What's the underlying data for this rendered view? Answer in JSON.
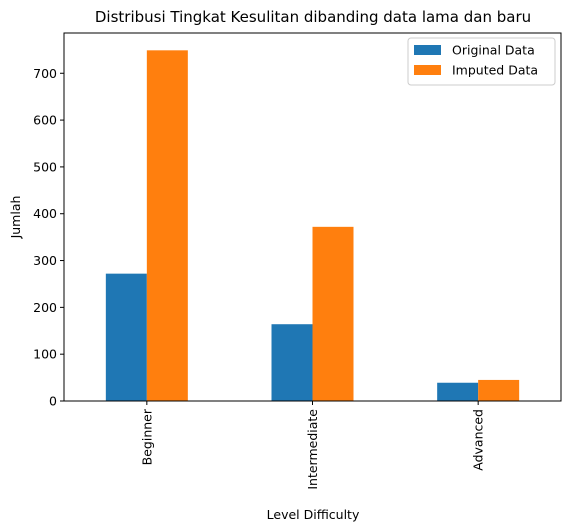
{
  "chart_data": {
    "type": "bar",
    "title": "Distribusi Tingkat Kesulitan dibanding data lama dan baru",
    "xlabel": "Level Difficulty",
    "ylabel": "Jumlah",
    "categories": [
      "Beginner",
      "Intermediate",
      "Advanced"
    ],
    "series": [
      {
        "name": "Original Data",
        "values": [
          272,
          164,
          39
        ],
        "color": "#1f77b4"
      },
      {
        "name": "Imputed Data",
        "values": [
          749,
          372,
          45
        ],
        "color": "#ff7f0e"
      }
    ],
    "ylim": [
      0,
      786
    ],
    "yticks": [
      0,
      100,
      200,
      300,
      400,
      500,
      600,
      700
    ],
    "grid": false,
    "legend": "top-right"
  }
}
